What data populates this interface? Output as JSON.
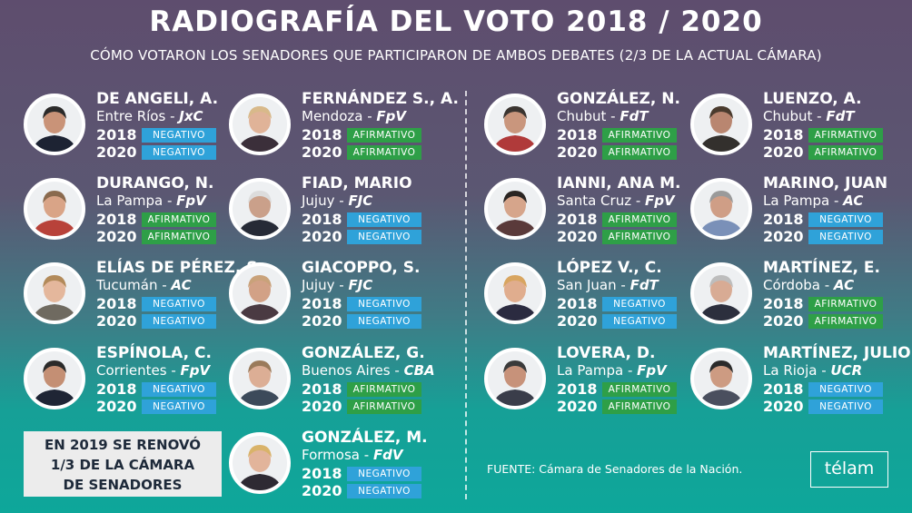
{
  "header": {
    "title": "RADIOGRAFÍA DEL VOTO 2018 / 2020",
    "subtitle": "CÓMO VOTARON LOS SENADORES QUE PARTICIPARON DE AMBOS DEBATES (2/3 DE LA ACTUAL CÁMARA)"
  },
  "year_labels": {
    "y1": "2018",
    "y2": "2020"
  },
  "senators": [
    {
      "name": "DE ANGELI, A.",
      "province": "Entre Ríos",
      "party": "JxC",
      "vote_2018": "NEGATIVO",
      "vote_2020": "NEGATIVO"
    },
    {
      "name": "FERNÁNDEZ S., A.",
      "province": "Mendoza",
      "party": "FpV",
      "vote_2018": "AFIRMATIVO",
      "vote_2020": "AFIRMATIVO"
    },
    {
      "name": "DURANGO, N.",
      "province": "La Pampa",
      "party": "FpV",
      "vote_2018": "AFIRMATIVO",
      "vote_2020": "AFIRMATIVO"
    },
    {
      "name": "FIAD, MARIO",
      "province": "Jujuy",
      "party": "FJC",
      "vote_2018": "NEGATIVO",
      "vote_2020": "NEGATIVO"
    },
    {
      "name": "ELÍAS DE PÉREZ, S.",
      "province": "Tucumán",
      "party": "AC",
      "vote_2018": "NEGATIVO",
      "vote_2020": "NEGATIVO"
    },
    {
      "name": "GIACOPPO, S.",
      "province": "Jujuy",
      "party": "FJC",
      "vote_2018": "NEGATIVO",
      "vote_2020": "NEGATIVO"
    },
    {
      "name": "ESPÍNOLA, C.",
      "province": "Corrientes",
      "party": "FpV",
      "vote_2018": "NEGATIVO",
      "vote_2020": "NEGATIVO"
    },
    {
      "name": "GONZÁLEZ, G.",
      "province": "Buenos Aires",
      "party": "CBA",
      "vote_2018": "AFIRMATIVO",
      "vote_2020": "AFIRMATIVO"
    },
    {
      "name": "GONZÁLEZ, M.",
      "province": "Formosa",
      "party": "FdV",
      "vote_2018": "NEGATIVO",
      "vote_2020": "NEGATIVO"
    },
    {
      "name": "GONZÁLEZ, N.",
      "province": "Chubut",
      "party": "FdT",
      "vote_2018": "AFIRMATIVO",
      "vote_2020": "AFIRMATIVO"
    },
    {
      "name": "LUENZO, A.",
      "province": "Chubut",
      "party": "FdT",
      "vote_2018": "AFIRMATIVO",
      "vote_2020": "AFIRMATIVO"
    },
    {
      "name": "IANNI, ANA M.",
      "province": "Santa Cruz",
      "party": "FpV",
      "vote_2018": "AFIRMATIVO",
      "vote_2020": "AFIRMATIVO"
    },
    {
      "name": "MARINO, JUAN",
      "province": "La Pampa",
      "party": "AC",
      "vote_2018": "NEGATIVO",
      "vote_2020": "NEGATIVO"
    },
    {
      "name": "LÓPEZ V., C.",
      "province": "San Juan",
      "party": "FdT",
      "vote_2018": "NEGATIVO",
      "vote_2020": "NEGATIVO"
    },
    {
      "name": "MARTÍNEZ, E.",
      "province": "Córdoba",
      "party": "AC",
      "vote_2018": "AFIRMATIVO",
      "vote_2020": "AFIRMATIVO"
    },
    {
      "name": "LOVERA, D.",
      "province": "La Pampa",
      "party": "FpV",
      "vote_2018": "AFIRMATIVO",
      "vote_2020": "AFIRMATIVO"
    },
    {
      "name": "MARTÍNEZ, JULIO",
      "province": "La Rioja",
      "party": "UCR",
      "vote_2018": "NEGATIVO",
      "vote_2020": "NEGATIVO"
    }
  ],
  "note": {
    "line1": "EN 2019  SE RENOVÓ",
    "line2": "1/3 DE LA CÁMARA",
    "line3": "DE SENADORES"
  },
  "source": "FUENTE: Cámara de Senadores de la Nación.",
  "logo": "télam",
  "colors": {
    "negative": "#2fa2d9",
    "affirmative": "#2e9f47",
    "note_bg": "#ececec"
  }
}
